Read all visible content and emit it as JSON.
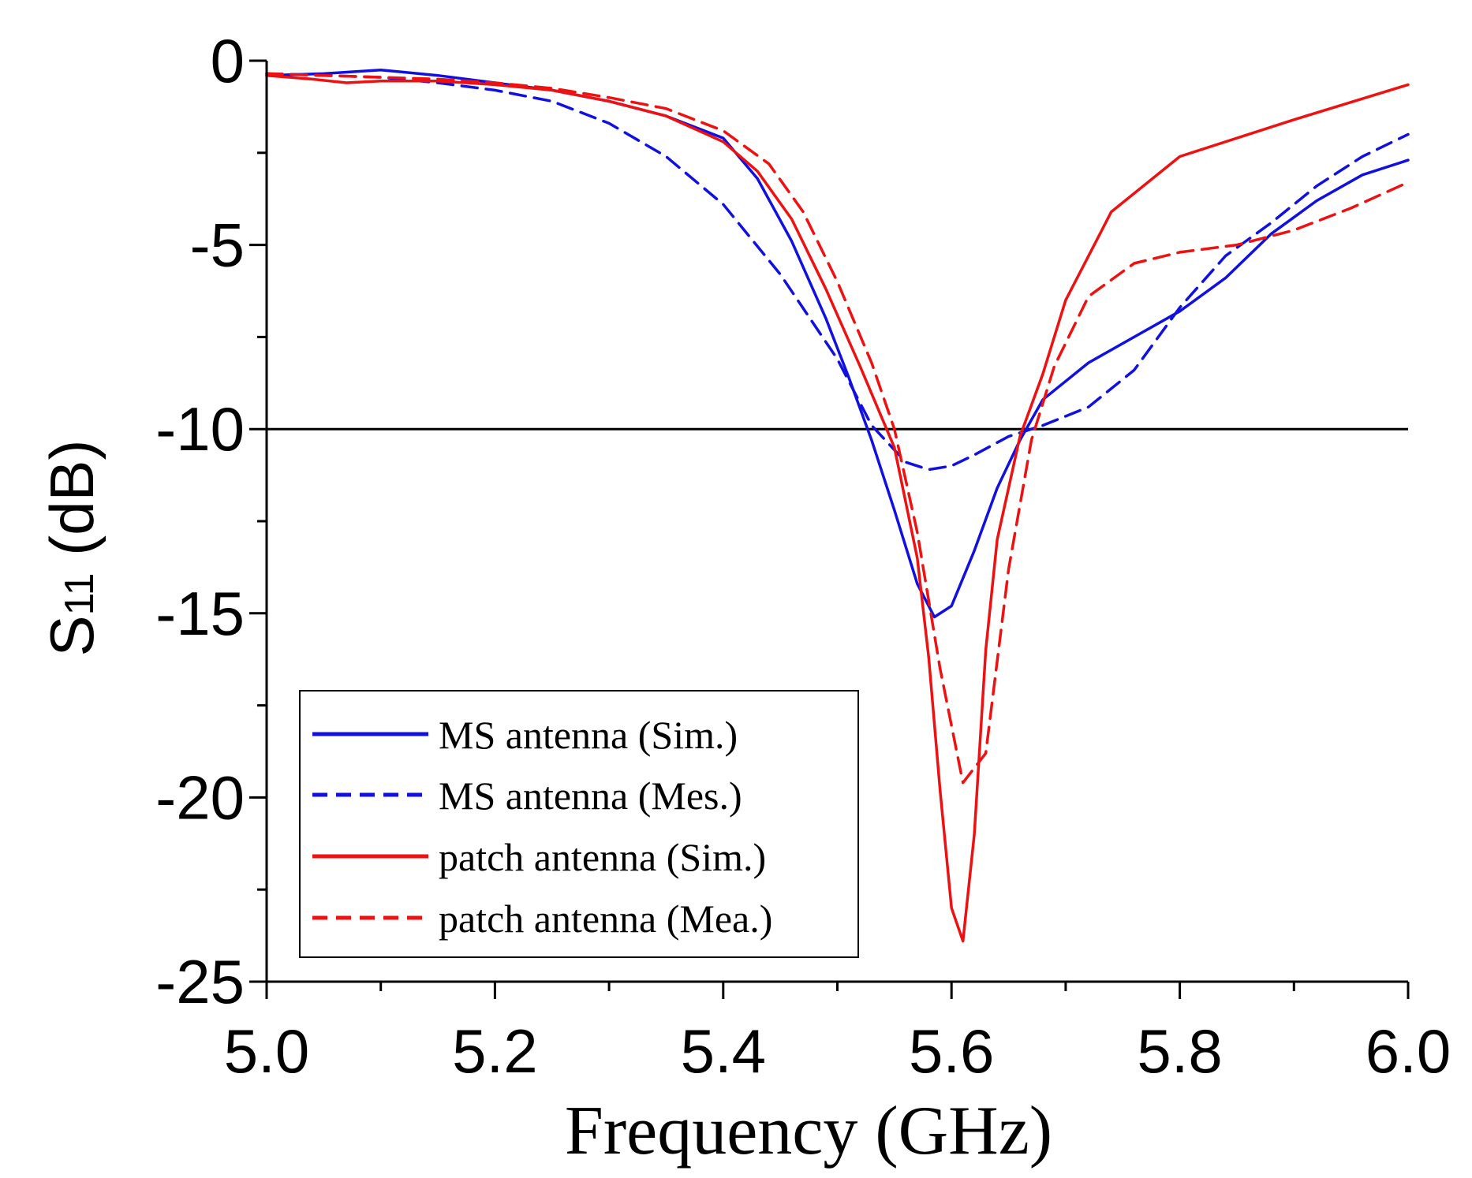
{
  "chart_data": {
    "type": "line",
    "title": "",
    "xlabel": "Frequency (GHz)",
    "ylabel_main": "S",
    "ylabel_sub": "11",
    "ylabel_unit": "(dB)",
    "xlim": [
      5.0,
      6.0
    ],
    "ylim": [
      -25,
      0
    ],
    "xticks": [
      5.0,
      5.2,
      5.4,
      5.6,
      5.8,
      6.0
    ],
    "xtick_labels": [
      "5.0",
      "5.2",
      "5.4",
      "5.6",
      "5.8",
      "6.0"
    ],
    "yticks": [
      0,
      -5,
      -10,
      -15,
      -20,
      -25
    ],
    "ytick_labels": [
      "0",
      "-5",
      "-10",
      "-15",
      "-20",
      "-25"
    ],
    "reference_line": {
      "y": -10,
      "color": "#000000"
    },
    "legend_position": "bottom-left",
    "series": [
      {
        "name": "MS antenna (Sim.)",
        "color": "#1010e0",
        "dash": "solid",
        "x": [
          5.0,
          5.05,
          5.1,
          5.15,
          5.2,
          5.25,
          5.3,
          5.35,
          5.4,
          5.43,
          5.46,
          5.49,
          5.51,
          5.53,
          5.55,
          5.57,
          5.585,
          5.6,
          5.62,
          5.64,
          5.66,
          5.68,
          5.72,
          5.76,
          5.8,
          5.84,
          5.88,
          5.92,
          5.96,
          6.0
        ],
        "y": [
          -0.4,
          -0.35,
          -0.25,
          -0.4,
          -0.6,
          -0.8,
          -1.1,
          -1.5,
          -2.1,
          -3.2,
          -4.9,
          -7.0,
          -8.6,
          -10.3,
          -12.2,
          -14.2,
          -15.1,
          -14.8,
          -13.3,
          -11.6,
          -10.3,
          -9.2,
          -8.2,
          -7.5,
          -6.8,
          -5.9,
          -4.7,
          -3.8,
          -3.1,
          -2.7
        ]
      },
      {
        "name": "MS antenna (Mes.)",
        "color": "#1010e0",
        "dash": "dashed",
        "x": [
          5.0,
          5.05,
          5.1,
          5.15,
          5.2,
          5.25,
          5.3,
          5.35,
          5.4,
          5.45,
          5.5,
          5.53,
          5.56,
          5.58,
          5.6,
          5.62,
          5.65,
          5.68,
          5.72,
          5.76,
          5.8,
          5.84,
          5.88,
          5.92,
          5.96,
          6.0
        ],
        "y": [
          -0.35,
          -0.4,
          -0.45,
          -0.6,
          -0.8,
          -1.1,
          -1.7,
          -2.6,
          -3.9,
          -5.8,
          -8.1,
          -9.9,
          -10.9,
          -11.1,
          -11.0,
          -10.7,
          -10.2,
          -9.9,
          -9.4,
          -8.4,
          -6.7,
          -5.3,
          -4.4,
          -3.4,
          -2.6,
          -2.0
        ]
      },
      {
        "name": "patch antenna (Sim.)",
        "color": "#ee1111",
        "dash": "solid",
        "x": [
          5.0,
          5.04,
          5.07,
          5.1,
          5.15,
          5.2,
          5.25,
          5.3,
          5.35,
          5.4,
          5.43,
          5.46,
          5.49,
          5.52,
          5.55,
          5.57,
          5.58,
          5.59,
          5.6,
          5.61,
          5.62,
          5.63,
          5.64,
          5.66,
          5.68,
          5.7,
          5.74,
          5.8,
          5.9,
          6.0
        ],
        "y": [
          -0.4,
          -0.5,
          -0.6,
          -0.55,
          -0.55,
          -0.65,
          -0.8,
          -1.1,
          -1.5,
          -2.2,
          -3.0,
          -4.3,
          -6.2,
          -8.3,
          -10.5,
          -13.5,
          -16.2,
          -19.8,
          -23.0,
          -23.9,
          -21.0,
          -16.0,
          -13.0,
          -10.2,
          -8.5,
          -6.5,
          -4.1,
          -2.6,
          -1.6,
          -0.65
        ]
      },
      {
        "name": "patch antenna (Mea.)",
        "color": "#ee1111",
        "dash": "dashed",
        "x": [
          5.0,
          5.05,
          5.1,
          5.15,
          5.2,
          5.25,
          5.3,
          5.35,
          5.4,
          5.44,
          5.47,
          5.5,
          5.53,
          5.55,
          5.57,
          5.59,
          5.61,
          5.63,
          5.65,
          5.67,
          5.69,
          5.72,
          5.76,
          5.8,
          5.85,
          5.9,
          5.95,
          6.0
        ],
        "y": [
          -0.35,
          -0.4,
          -0.45,
          -0.5,
          -0.6,
          -0.75,
          -1.0,
          -1.3,
          -1.9,
          -2.8,
          -4.1,
          -6.0,
          -8.2,
          -10.0,
          -12.8,
          -16.5,
          -19.6,
          -18.8,
          -13.8,
          -10.3,
          -8.3,
          -6.4,
          -5.5,
          -5.2,
          -5.0,
          -4.6,
          -4.0,
          -3.3
        ]
      }
    ]
  }
}
